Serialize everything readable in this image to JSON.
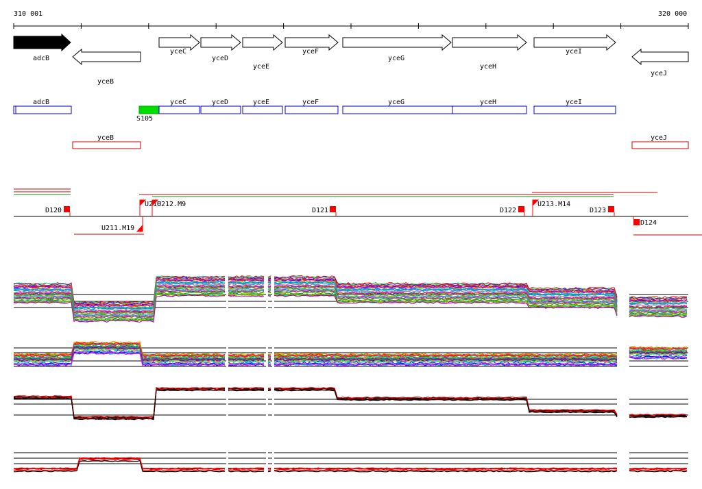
{
  "ruler": {
    "start_label": "310 001",
    "end_label": "320 000"
  },
  "genes_forward": [
    {
      "id": "adcB",
      "label": "adcB",
      "filled": true
    },
    {
      "id": "yceC",
      "label": "yceC",
      "filled": false
    },
    {
      "id": "yceD",
      "label": "yceD",
      "filled": false
    },
    {
      "id": "yceE",
      "label": "yceE",
      "filled": false
    },
    {
      "id": "yceF",
      "label": "yceF",
      "filled": false
    },
    {
      "id": "yceG",
      "label": "yceG",
      "filled": false
    },
    {
      "id": "yceH",
      "label": "yceH",
      "filled": false
    },
    {
      "id": "yceI",
      "label": "yceI",
      "filled": false
    }
  ],
  "genes_reverse": [
    {
      "id": "yceB",
      "label": "yceB"
    },
    {
      "id": "yceJ",
      "label": "yceJ"
    }
  ],
  "plus_strand_boxes": [
    {
      "label": "adcB"
    },
    {
      "label": "yceC"
    },
    {
      "label": "yceD"
    },
    {
      "label": "yceE"
    },
    {
      "label": "yceF"
    },
    {
      "label": "yceG"
    },
    {
      "label": "yceH"
    },
    {
      "label": "yceI"
    }
  ],
  "minus_strand_boxes": [
    {
      "label": "yceB"
    },
    {
      "label": "yceJ"
    }
  ],
  "small_feature": {
    "label": "S105",
    "color": "#00dd00"
  },
  "operon_markers_upper": [
    {
      "label": "D120"
    },
    {
      "label": "U210"
    },
    {
      "label": "U212.M9"
    },
    {
      "label": "D121"
    },
    {
      "label": "D122"
    },
    {
      "label": "U213.M14"
    },
    {
      "label": "D123"
    }
  ],
  "operon_markers_lower": [
    {
      "label": "U211.M19"
    },
    {
      "label": "D124"
    }
  ],
  "colors": {
    "plus_strand": "#0000cc",
    "minus_strand": "#cc0000",
    "marker": "#ff0000",
    "green": "#00dd00",
    "profile_mean": "#000000",
    "profile_highlight": "#ff0000"
  }
}
